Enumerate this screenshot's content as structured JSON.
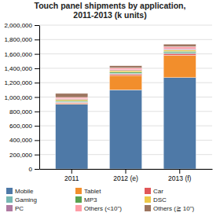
{
  "chart_data": {
    "type": "bar",
    "stacked": true,
    "title": "Touch panel shipments by application,\n2011-2013 (k units)",
    "categories": [
      "2011",
      "2012 (e)",
      "2013 (f)"
    ],
    "series": [
      {
        "name": "Mobile",
        "values": [
          900000,
          1100000,
          1270000
        ]
      },
      {
        "name": "Tablet",
        "values": [
          10000,
          200000,
          310000
        ]
      },
      {
        "name": "Car",
        "values": [
          15000,
          20000,
          25000
        ]
      },
      {
        "name": "Gaming",
        "values": [
          10000,
          12000,
          15000
        ]
      },
      {
        "name": "MP3",
        "values": [
          15000,
          18000,
          18000
        ]
      },
      {
        "name": "DSC",
        "values": [
          15000,
          18000,
          18000
        ]
      },
      {
        "name": "PC",
        "values": [
          10000,
          12000,
          15000
        ]
      },
      {
        "name": "Others (<10\")",
        "values": [
          20000,
          25000,
          30000
        ]
      },
      {
        "name": "Others (≧ 10\")",
        "values": [
          55000,
          30000,
          35000
        ]
      }
    ],
    "ylim": [
      0,
      2000000
    ],
    "yticks": [
      0,
      {
        "value": 200000,
        "label": "200,000"
      },
      {
        "value": 400000,
        "label": "400,000"
      },
      {
        "value": 600000,
        "label": "600,000"
      },
      {
        "value": 800000,
        "label": "800,000"
      },
      {
        "value": 1000000,
        "label": "1,000,000"
      },
      {
        "value": 1200000,
        "label": "1,200,000"
      },
      {
        "value": 1400000,
        "label": "1,400,000"
      },
      {
        "value": 1600000,
        "label": "1,600,000"
      },
      {
        "value": 1800000,
        "label": "1,800,000"
      },
      {
        "value": 2000000,
        "label": "2,000,000"
      }
    ],
    "grid": true,
    "legend": "bottom"
  }
}
